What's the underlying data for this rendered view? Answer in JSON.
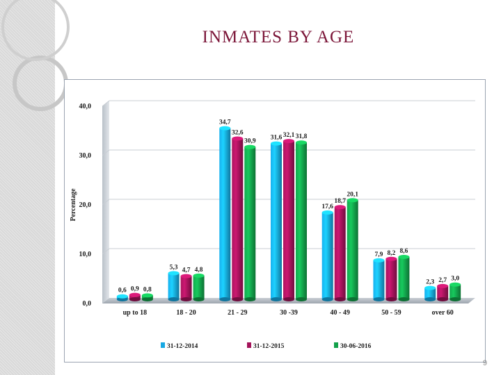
{
  "slide": {
    "title": "INMATES  BY  AGE",
    "page_number": "9"
  },
  "chart_data": {
    "type": "bar",
    "title": "INMATES  BY  AGE",
    "ylabel": "Percentage",
    "xlabel": "",
    "ylim": [
      0,
      40
    ],
    "yticks": [
      "0,0",
      "10,0",
      "20,0",
      "30,0",
      "40,0"
    ],
    "grid": true,
    "legend_position": "bottom",
    "categories": [
      "up to 18",
      "18 - 20",
      "21 - 29",
      "30 -39",
      "40 - 49",
      "50 - 59",
      "over 60"
    ],
    "series": [
      {
        "name": "31-12-2014",
        "color": "#17a8e3",
        "values": [
          0.6,
          5.3,
          34.7,
          31.6,
          17.6,
          7.9,
          2.3
        ],
        "labels": [
          "0,6",
          "5,3",
          "34,7",
          "31,6",
          "17,6",
          "7,9",
          "2,3"
        ]
      },
      {
        "name": "31-12-2015",
        "color": "#a3135a",
        "values": [
          0.9,
          4.7,
          32.6,
          32.1,
          18.7,
          8.2,
          2.7
        ],
        "labels": [
          "0,9",
          "4,7",
          "32,6",
          "32,1",
          "18,7",
          "8,2",
          "2,7"
        ]
      },
      {
        "name": "30-06-2016",
        "color": "#12a14a",
        "values": [
          0.8,
          4.8,
          30.9,
          31.8,
          20.1,
          8.6,
          3.0
        ],
        "labels": [
          "0,8",
          "4,8",
          "30,9",
          "31,8",
          "20,1",
          "8,6",
          "3,0"
        ]
      }
    ]
  }
}
